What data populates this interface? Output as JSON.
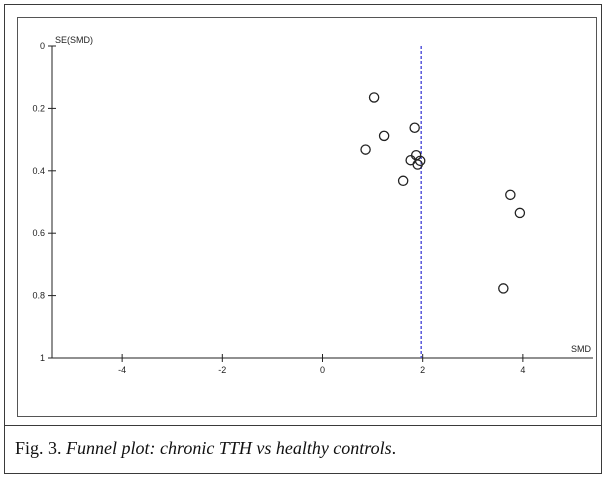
{
  "chart_data": {
    "type": "scatter",
    "title": "",
    "xlabel": "SMD",
    "ylabel": "SE(SMD)",
    "xlim": [
      -5.4,
      5.4
    ],
    "ylim": [
      0,
      1
    ],
    "y_inverted": true,
    "x_ticks": [
      -4,
      -2,
      0,
      2,
      4
    ],
    "x_tick_labels": [
      "-4",
      "-2",
      "0",
      "2",
      "4"
    ],
    "y_ticks": [
      0,
      0.2,
      0.4,
      0.6,
      0.8,
      1
    ],
    "y_tick_labels": [
      "0",
      "0.2",
      "0.4",
      "0.6",
      "0.8",
      "1"
    ],
    "reference_line": {
      "x": 1.97,
      "style": "dashed",
      "color": "#4a4ad8"
    },
    "grid": false,
    "marker": "open-circle",
    "points": [
      {
        "x": 1.03,
        "y": 0.165
      },
      {
        "x": 1.84,
        "y": 0.262
      },
      {
        "x": 1.23,
        "y": 0.288
      },
      {
        "x": 0.86,
        "y": 0.332
      },
      {
        "x": 1.87,
        "y": 0.35
      },
      {
        "x": 1.76,
        "y": 0.366
      },
      {
        "x": 1.95,
        "y": 0.368
      },
      {
        "x": 1.9,
        "y": 0.38
      },
      {
        "x": 1.61,
        "y": 0.432
      },
      {
        "x": 3.75,
        "y": 0.477
      },
      {
        "x": 3.94,
        "y": 0.535
      },
      {
        "x": 3.61,
        "y": 0.777
      }
    ]
  },
  "caption": {
    "prefix": "Fig. 3. ",
    "text": "Funnel plot: chronic TTH vs healthy controls",
    "suffix": "."
  }
}
